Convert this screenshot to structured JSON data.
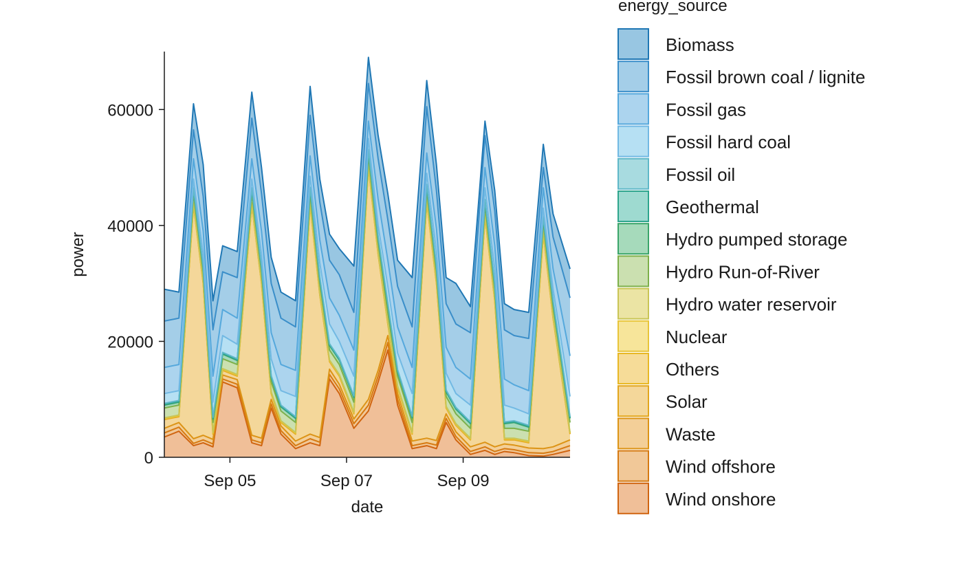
{
  "chart_data": {
    "type": "area",
    "stacked": true,
    "xlabel": "date",
    "ylabel": "power",
    "ylim": [
      0,
      70000
    ],
    "xlim": [
      "2022-09-03T21:00",
      "2022-09-10T20:00"
    ],
    "x_ticks": [
      "Sep 05",
      "Sep 07",
      "Sep 09"
    ],
    "x_tick_dates": [
      "2022-09-05",
      "2022-09-07",
      "2022-09-09"
    ],
    "y_ticks": [
      "0",
      "20000",
      "40000",
      "60000"
    ],
    "y_tick_values": [
      0,
      20000,
      40000,
      60000
    ],
    "legend": {
      "title": "energy_source",
      "position": "right",
      "entries": [
        "Biomass",
        "Fossil brown coal / lignite",
        "Fossil gas",
        "Fossil hard coal",
        "Fossil oil",
        "Geothermal",
        "Hydro pumped storage",
        "Hydro Run-of-River",
        "Hydro water reservoir",
        "Nuclear",
        "Others",
        "Solar",
        "Waste",
        "Wind offshore",
        "Wind onshore"
      ]
    },
    "grid": false,
    "cumulative_levels": {
      "points": [
        "2022-09-03T21:00",
        "2022-09-04T03:00",
        "2022-09-04T09:00",
        "2022-09-04T13:00",
        "2022-09-04T17:00",
        "2022-09-04T21:00",
        "2022-09-05T03:00",
        "2022-09-05T09:00",
        "2022-09-05T13:00",
        "2022-09-05T17:00",
        "2022-09-05T21:00",
        "2022-09-06T03:00",
        "2022-09-06T09:00",
        "2022-09-06T13:00",
        "2022-09-06T17:00",
        "2022-09-06T21:00",
        "2022-09-07T03:00",
        "2022-09-07T09:00",
        "2022-09-07T13:00",
        "2022-09-07T17:00",
        "2022-09-07T21:00",
        "2022-09-08T03:00",
        "2022-09-08T09:00",
        "2022-09-08T13:00",
        "2022-09-08T17:00",
        "2022-09-08T21:00",
        "2022-09-09T03:00",
        "2022-09-09T09:00",
        "2022-09-09T13:00",
        "2022-09-09T17:00",
        "2022-09-09T21:00",
        "2022-09-10T03:00",
        "2022-09-10T09:00",
        "2022-09-10T13:00",
        "2022-09-10T20:00"
      ],
      "levels": [
        {
          "series": "Wind onshore",
          "values": [
            3500,
            4500,
            2000,
            2500,
            1800,
            13000,
            12000,
            2500,
            2000,
            8500,
            4000,
            1500,
            2500,
            2000,
            13500,
            11000,
            5000,
            8000,
            13000,
            18500,
            9000,
            1500,
            2000,
            1500,
            6000,
            3000,
            500,
            1200,
            500,
            1000,
            800,
            300,
            200,
            500,
            1200
          ]
        },
        {
          "series": "Wind offshore",
          "values": [
            4200,
            5200,
            2400,
            3000,
            2300,
            13500,
            12600,
            3000,
            2500,
            9200,
            4600,
            2000,
            3200,
            2600,
            14300,
            11800,
            5800,
            9000,
            14000,
            19800,
            10000,
            2000,
            2500,
            2100,
            6700,
            3600,
            1000,
            1800,
            1000,
            1500,
            1300,
            800,
            700,
            1000,
            2000
          ]
        },
        {
          "series": "Waste",
          "values": [
            5000,
            6000,
            3200,
            3800,
            3100,
            14200,
            13400,
            3800,
            3300,
            10000,
            5400,
            2800,
            4000,
            3400,
            15200,
            12600,
            6600,
            10000,
            15000,
            21000,
            11000,
            2800,
            3300,
            2900,
            7500,
            4400,
            1800,
            2600,
            1800,
            2300,
            2100,
            1600,
            1500,
            1800,
            3000
          ]
        },
        {
          "series": "Solar",
          "values": [
            6500,
            7000,
            43500,
            30000,
            4000,
            15000,
            14000,
            43500,
            30000,
            11000,
            6000,
            4000,
            43500,
            28000,
            16500,
            14000,
            7500,
            50000,
            35000,
            23000,
            12000,
            4000,
            44000,
            30000,
            8500,
            5500,
            3000,
            41500,
            27000,
            3000,
            3000,
            2500,
            38500,
            24000,
            4000
          ]
        },
        {
          "series": "Others",
          "values": [
            6600,
            7100,
            43600,
            30100,
            4100,
            15100,
            14100,
            43600,
            30100,
            11100,
            6100,
            4100,
            43600,
            28100,
            16600,
            14100,
            7600,
            50100,
            35100,
            23100,
            12100,
            4100,
            44100,
            30100,
            8600,
            5600,
            3100,
            41600,
            27100,
            3100,
            3100,
            2600,
            38600,
            24100,
            4100
          ]
        },
        {
          "series": "Nuclear",
          "values": [
            6700,
            7200,
            43700,
            30200,
            4200,
            15200,
            14200,
            43700,
            30200,
            11200,
            6200,
            4200,
            43700,
            28200,
            16700,
            14200,
            7700,
            50200,
            35200,
            23200,
            12200,
            4200,
            44200,
            30200,
            8700,
            5700,
            3200,
            41700,
            27200,
            3200,
            3200,
            2700,
            38700,
            24200,
            4200
          ]
        },
        {
          "series": "Hydro water reservoir",
          "values": [
            6800,
            7300,
            43900,
            30300,
            4300,
            15300,
            14300,
            43900,
            30300,
            11300,
            6300,
            4300,
            43900,
            28300,
            16800,
            14300,
            7800,
            50400,
            35300,
            23300,
            12300,
            4300,
            44400,
            30300,
            8800,
            5800,
            3300,
            41900,
            27300,
            3300,
            3300,
            2800,
            38900,
            24300,
            4300
          ]
        },
        {
          "series": "Hydro Run-of-River",
          "values": [
            8500,
            9000,
            45500,
            32000,
            6000,
            17000,
            16000,
            45500,
            32000,
            13000,
            8000,
            6000,
            45500,
            30000,
            18500,
            16000,
            9500,
            52000,
            37000,
            25000,
            14000,
            6000,
            46000,
            32000,
            10500,
            7500,
            5000,
            43500,
            29000,
            5000,
            5000,
            4500,
            40500,
            26000,
            6000
          ]
        },
        {
          "series": "Hydro pumped storage",
          "values": [
            9000,
            9500,
            46200,
            32700,
            6600,
            17800,
            16700,
            46200,
            32700,
            13800,
            8700,
            6700,
            46300,
            30800,
            19300,
            16800,
            10300,
            52800,
            37800,
            26300,
            14800,
            6800,
            46800,
            32800,
            11300,
            8300,
            5800,
            44200,
            29800,
            5800,
            6000,
            5200,
            41200,
            26800,
            6700
          ]
        },
        {
          "series": "Geothermal",
          "values": [
            9100,
            9600,
            46300,
            32800,
            6700,
            17900,
            16800,
            46300,
            32800,
            13900,
            8800,
            6800,
            46400,
            30900,
            19400,
            16900,
            10400,
            52900,
            37900,
            26400,
            14900,
            6900,
            46900,
            32900,
            11400,
            8400,
            5900,
            44300,
            29900,
            5900,
            6100,
            5300,
            41300,
            26900,
            6800
          ]
        },
        {
          "series": "Fossil oil",
          "values": [
            9300,
            9800,
            46500,
            33000,
            6900,
            18100,
            17000,
            46500,
            33000,
            14100,
            9000,
            7000,
            46600,
            31100,
            19600,
            17100,
            10600,
            53100,
            38100,
            26600,
            15100,
            7100,
            47100,
            33100,
            11600,
            8600,
            6100,
            44500,
            30100,
            6100,
            6300,
            5500,
            41500,
            27100,
            7000
          ]
        },
        {
          "series": "Fossil hard coal",
          "values": [
            11000,
            11500,
            48000,
            35000,
            9500,
            21000,
            19500,
            48000,
            35000,
            17000,
            11500,
            10500,
            48500,
            33500,
            23000,
            20000,
            14000,
            55000,
            40000,
            29500,
            18000,
            11000,
            49000,
            35500,
            14500,
            11000,
            9000,
            46500,
            32500,
            9000,
            8500,
            7500,
            43000,
            29000,
            10500
          ]
        },
        {
          "series": "Fossil gas",
          "values": [
            15500,
            16000,
            51500,
            39000,
            14000,
            25500,
            24000,
            51500,
            39000,
            21500,
            16000,
            15000,
            52000,
            37500,
            27500,
            24500,
            18500,
            58000,
            44500,
            34000,
            22500,
            15500,
            52500,
            39500,
            19000,
            15500,
            13500,
            50000,
            36500,
            13500,
            12500,
            11500,
            46500,
            32500,
            17500
          ]
        },
        {
          "series": "Fossil brown coal / lignite",
          "values": [
            23500,
            24000,
            56500,
            45000,
            22000,
            32000,
            31000,
            58500,
            45500,
            30000,
            24000,
            22500,
            59000,
            44000,
            34000,
            31500,
            25000,
            64500,
            51500,
            41000,
            29500,
            22500,
            60500,
            46000,
            26500,
            23000,
            21500,
            55500,
            42500,
            22000,
            21000,
            20500,
            50000,
            38000,
            27500
          ]
        },
        {
          "series": "Biomass",
          "values": [
            29000,
            28500,
            61000,
            50500,
            27000,
            36500,
            35500,
            63000,
            50000,
            34500,
            28500,
            27000,
            64000,
            48000,
            38500,
            36000,
            33000,
            69000,
            55500,
            45500,
            34000,
            31000,
            65000,
            50500,
            31000,
            30000,
            26000,
            58000,
            46000,
            26500,
            25500,
            25000,
            54000,
            42000,
            32500
          ]
        }
      ]
    },
    "colors": {
      "Biomass": "#1f77b4",
      "Fossil brown coal / lignite": "#3a8ec9",
      "Fossil gas": "#55a8dc",
      "Fossil hard coal": "#72b9e3",
      "Fossil oil": "#5fb8c8",
      "Geothermal": "#2ea58d",
      "Hydro pumped storage": "#3aa56a",
      "Hydro Run-of-River": "#7db04a",
      "Hydro water reservoir": "#c9c556",
      "Nuclear": "#e8c53a",
      "Others": "#e8b825",
      "Solar": "#e2a61c",
      "Waste": "#dc9416",
      "Wind offshore": "#d67a12",
      "Wind onshore": "#d06410"
    },
    "fills": {
      "Biomass": "#98c6e2",
      "Fossil brown coal / lignite": "#a4cee8",
      "Fossil gas": "#acd4ee",
      "Fossil hard coal": "#b6e0f3",
      "Fossil oil": "#a8dbe0",
      "Geothermal": "#9edad0",
      "Hydro pumped storage": "#a6dabb",
      "Hydro Run-of-River": "#cbe0b0",
      "Hydro water reservoir": "#ebe4a4",
      "Nuclear": "#f7e59a",
      "Others": "#f6dc98",
      "Solar": "#f4d79a",
      "Waste": "#f3cf98",
      "Wind offshore": "#f1c898",
      "Wind onshore": "#f0bf98"
    }
  }
}
